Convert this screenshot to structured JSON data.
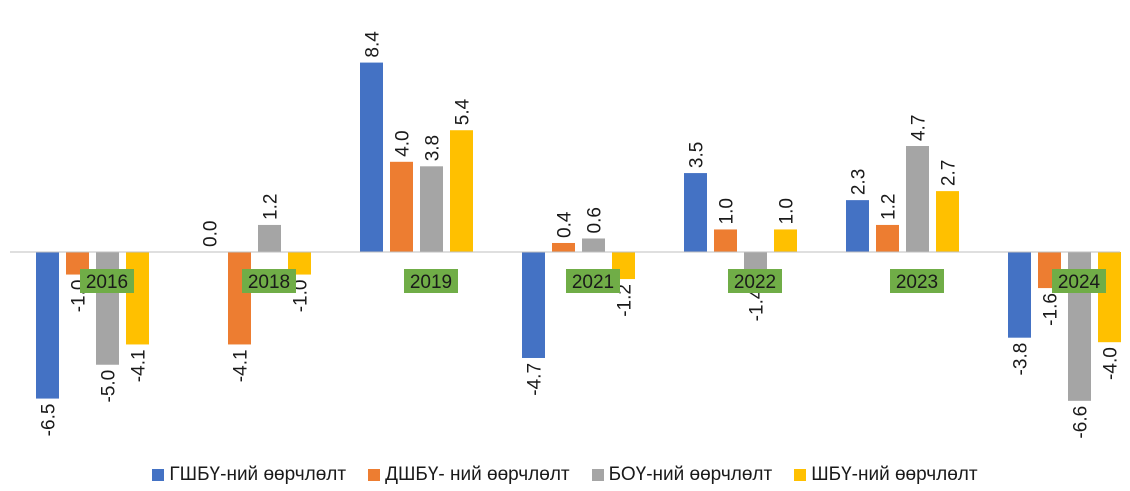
{
  "chart_data": {
    "type": "bar",
    "categories": [
      "2016",
      "2018",
      "2019",
      "2021",
      "2022",
      "2023",
      "2024"
    ],
    "series": [
      {
        "name": "ГШБҮ-ний өөрчлөлт",
        "color": "#4472c4",
        "values": [
          -6.5,
          0.0,
          8.4,
          -4.7,
          3.5,
          2.3,
          -3.8
        ],
        "labels": [
          "-6.5",
          "0.0",
          "8.4",
          "-4.7",
          "3.5",
          "2.3",
          "-3.8"
        ]
      },
      {
        "name": "ДШБҮ- ний өөрчлөлт",
        "color": "#ed7d31",
        "values": [
          -1.0,
          -4.1,
          4.0,
          0.4,
          1.0,
          1.2,
          -1.6
        ],
        "labels": [
          "-1.0",
          "-4.1",
          "4.0",
          "0.4",
          "1.0",
          "1.2",
          "-1.6"
        ]
      },
      {
        "name": "БОҮ-ний өөрчлөлт",
        "color": "#a5a5a5",
        "values": [
          -5.0,
          1.2,
          3.8,
          0.6,
          -1.4,
          4.7,
          -6.6
        ],
        "labels": [
          "-5.0",
          "1.2",
          "3.8",
          "0.6",
          "-1.4",
          "4.7",
          "-6.6"
        ]
      },
      {
        "name": "ШБҮ-ний өөрчлөлт",
        "color": "#ffc000",
        "values": [
          -4.1,
          -1.0,
          5.4,
          -1.2,
          1.0,
          2.7,
          -4.0
        ],
        "labels": [
          "-4.1",
          "-1.0",
          "5.4",
          "-1.2",
          "1.0",
          "2.7",
          "-4.0"
        ]
      }
    ],
    "category_label_bg": "#70ad47",
    "legend_position": "bottom",
    "grid": false,
    "ylim": [
      -9.0,
      10.7
    ]
  }
}
